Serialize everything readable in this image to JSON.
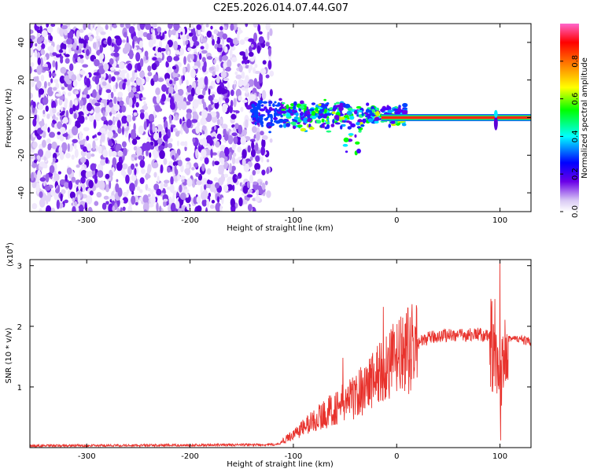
{
  "title": "C2E5.2026.014.07.44.G07",
  "chart_data": [
    {
      "type": "heatmap",
      "xlabel": "Height of straight line (km)",
      "ylabel": "Frequency (Hz)",
      "xlim": [
        -355,
        130
      ],
      "ylim": [
        -50,
        50
      ],
      "xticks": [
        -300,
        -200,
        -100,
        0,
        100
      ],
      "yticks": [
        -40,
        -20,
        0,
        20,
        40
      ],
      "colorbar": {
        "label": "Normalized spectral amplitude",
        "ticks": [
          0.0,
          0.2,
          0.4,
          0.6,
          0.8
        ],
        "range": [
          0,
          1
        ],
        "colormap": [
          "#ffffff",
          "#6a00e8",
          "#0000ff",
          "#00ffff",
          "#00ff00",
          "#ffff00",
          "#ff8000",
          "#ff0000",
          "#ff66cc"
        ]
      },
      "regions": [
        {
          "name": "noise",
          "x_range": [
            -355,
            -120
          ],
          "freq_range": [
            -50,
            50
          ],
          "amplitude_range": [
            0.0,
            0.2
          ]
        },
        {
          "name": "signal_spread",
          "x_range": [
            -140,
            10
          ],
          "freq_range": [
            -20,
            15
          ],
          "amplitude_range": [
            0.1,
            0.6
          ]
        },
        {
          "name": "signal_line",
          "x_range": [
            -15,
            130
          ],
          "frequency": 0,
          "amplitude_range": [
            0.6,
            1.0
          ]
        }
      ]
    },
    {
      "type": "line",
      "xlabel": "Height of straight line (km)",
      "ylabel": "SNR (10 * v/v)",
      "ymultiplier": "(x10",
      "ymultiplier_exp": "4",
      "ymultiplier_close": ")",
      "xlim": [
        -355,
        130
      ],
      "ylim": [
        0,
        3.1
      ],
      "xticks": [
        -300,
        -200,
        -100,
        0,
        100
      ],
      "yticks": [
        1,
        2,
        3
      ],
      "color": "#e8322c",
      "envelope_x": [
        -355,
        -200,
        -115,
        -100,
        -80,
        -60,
        -40,
        -25,
        -10,
        0,
        10,
        20,
        30,
        40,
        50,
        60,
        70,
        80,
        90,
        95,
        100,
        105,
        110,
        120,
        130
      ],
      "envelope_y": [
        0.03,
        0.04,
        0.05,
        0.22,
        0.45,
        0.65,
        0.85,
        1.1,
        1.35,
        1.45,
        1.58,
        1.72,
        1.8,
        1.84,
        1.86,
        1.85,
        1.86,
        1.87,
        1.82,
        1.4,
        0.9,
        1.85,
        1.8,
        1.78,
        1.74
      ],
      "spikes": [
        {
          "x": -13,
          "y": 2.32
        },
        {
          "x": -52,
          "y": 1.48
        },
        {
          "x": -2,
          "y": 1.55
        },
        {
          "x": 95,
          "y": 2.45
        },
        {
          "x": 100,
          "y": 3.08
        },
        {
          "x": 100.5,
          "y": 0.12
        }
      ]
    }
  ]
}
